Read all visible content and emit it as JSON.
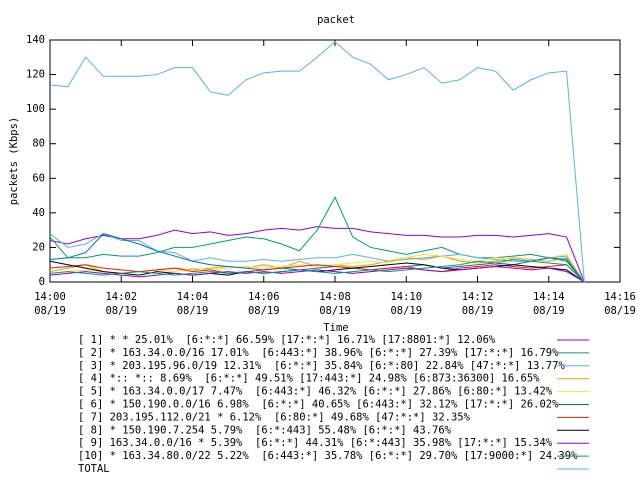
{
  "chart_data": {
    "type": "line",
    "title": "packet",
    "x_label": "Time",
    "y_label": "packets (Kbps)",
    "x": [
      0,
      0.5,
      1,
      1.5,
      2,
      2.5,
      3,
      3.5,
      4,
      4.5,
      5,
      5.5,
      6,
      6.5,
      7,
      7.5,
      8,
      8.5,
      9,
      9.5,
      10,
      10.5,
      11,
      11.5,
      12,
      12.5,
      13,
      13.5,
      14,
      14.5,
      15
    ],
    "xlim": [
      0,
      16
    ],
    "xticks": [
      {
        "value": 0,
        "label": "14:00 08/19"
      },
      {
        "value": 2,
        "label": "14:02 08/19"
      },
      {
        "value": 4,
        "label": "14:04 08/19"
      },
      {
        "value": 6,
        "label": "14:06 08/19"
      },
      {
        "value": 8,
        "label": "14:08 08/19"
      },
      {
        "value": 10,
        "label": "14:10 08/19"
      },
      {
        "value": 12,
        "label": "14:12 08/19"
      },
      {
        "value": 14,
        "label": "14:14 08/19"
      },
      {
        "value": 16,
        "label": "14:16 08/19"
      }
    ],
    "ylim": [
      0,
      140
    ],
    "yticks": [
      0,
      20,
      40,
      60,
      80,
      100,
      120,
      140
    ],
    "series": [
      {
        "name": "[ 1] * * 25.01%  [6:*:*] 66.59% [17:*:*] 16.71% [17:8801:*] 12.06%",
        "color": "#9400d3",
        "values": [
          24,
          22,
          25,
          27,
          25,
          25,
          27,
          30,
          28,
          29,
          27,
          28,
          30,
          31,
          30,
          32,
          31,
          31,
          29,
          28,
          27,
          27,
          26,
          26,
          27,
          27,
          26,
          27,
          28,
          26,
          0
        ]
      },
      {
        "name": "[ 2] * 163.34.0.0/16 17.01%  [6:443:*] 38.96% [6:*:*] 27.39% [17:*:*] 16.79%",
        "color": "#009e73",
        "values": [
          26,
          14,
          14,
          16,
          15,
          15,
          17,
          20,
          20,
          22,
          24,
          26,
          25,
          22,
          18,
          30,
          49,
          26,
          20,
          18,
          16,
          18,
          20,
          16,
          14,
          14,
          15,
          16,
          14,
          12,
          0
        ]
      },
      {
        "name": "[ 3] * 203.195.96.0/19 12.31%  [6:*:*] 35.84% [6:*:80] 22.84% [47:*:*] 13.77%",
        "color": "#56b4e9",
        "values": [
          28,
          20,
          22,
          28,
          24,
          24,
          18,
          17,
          12,
          14,
          12,
          12,
          13,
          12,
          13,
          14,
          14,
          16,
          14,
          12,
          13,
          14,
          15,
          16,
          14,
          13,
          12,
          12,
          14,
          15,
          0
        ]
      },
      {
        "name": "[ 4] *:: *:: 8.69%  [6:*:*] 49.51% [17:443:*] 24.98% [6:873:36300] 16.65%",
        "color": "#e69f00",
        "values": [
          6,
          8,
          10,
          6,
          5,
          6,
          7,
          8,
          7,
          8,
          9,
          8,
          10,
          8,
          12,
          9,
          10,
          9,
          10,
          12,
          14,
          13,
          15,
          12,
          11,
          12,
          14,
          13,
          12,
          14,
          0
        ]
      },
      {
        "name": "[ 5] * 163.34.0.0/17 7.47%  [6:443:*] 46.32% [6:*:*] 27.86% [6:80:*] 13.42%",
        "color": "#f0e442",
        "values": [
          5,
          6,
          7,
          6,
          5,
          6,
          7,
          6,
          8,
          7,
          8,
          9,
          8,
          9,
          10,
          9,
          10,
          11,
          12,
          11,
          14,
          16,
          15,
          13,
          12,
          14,
          13,
          12,
          14,
          16,
          0
        ]
      },
      {
        "name": "[ 6] * 150.190.0.0/16 6.98%  [6:*:*] 40.65% [6:443:*] 32.12% [17:*:*] 26.02%",
        "color": "#0072b2",
        "values": [
          13,
          14,
          17,
          28,
          25,
          22,
          18,
          15,
          12,
          10,
          9,
          8,
          7,
          8,
          7,
          8,
          9,
          8,
          7,
          8,
          9,
          10,
          8,
          9,
          10,
          11,
          10,
          12,
          14,
          13,
          0
        ]
      },
      {
        "name": "[ 7] 203.195.112.0/21 * 6.12%  [6:80:*] 49.68% [47:*:*] 32.35%",
        "color": "#e51e10",
        "values": [
          8,
          9,
          10,
          8,
          7,
          6,
          7,
          8,
          6,
          7,
          5,
          6,
          7,
          8,
          9,
          10,
          9,
          8,
          7,
          8,
          9,
          7,
          6,
          8,
          9,
          10,
          9,
          8,
          9,
          10,
          0
        ]
      },
      {
        "name": "[ 8] * 150.190.7.254 5.79%  [6:*:443] 55.48% [6:*:*] 43.76%",
        "color": "#000000",
        "values": [
          12,
          10,
          8,
          6,
          5,
          4,
          6,
          5,
          4,
          5,
          4,
          6,
          5,
          6,
          7,
          6,
          7,
          8,
          9,
          10,
          11,
          10,
          8,
          7,
          8,
          9,
          10,
          9,
          8,
          7,
          0
        ]
      },
      {
        "name": "[ 9] 163.34.0.0/16 * 5.39%  [6:*:*] 44.31% [6:*:443] 35.98% [17:*:*] 15.34%",
        "color": "#9400d3",
        "values": [
          4,
          5,
          6,
          5,
          4,
          3,
          4,
          5,
          4,
          5,
          6,
          5,
          6,
          5,
          6,
          7,
          6,
          5,
          6,
          7,
          8,
          7,
          6,
          7,
          8,
          9,
          8,
          7,
          8,
          6,
          0
        ]
      },
      {
        "name": "[10] * 163.34.80.0/22 5.22%  [6:443:*] 35.78% [6:*:*] 29.70% [17:9000:*] 24.39%",
        "color": "#009e73",
        "values": [
          5,
          6,
          5,
          4,
          5,
          6,
          5,
          4,
          5,
          6,
          5,
          6,
          5,
          6,
          7,
          6,
          5,
          6,
          7,
          6,
          7,
          8,
          9,
          10,
          12,
          11,
          13,
          12,
          11,
          10,
          0
        ]
      },
      {
        "name": "TOTAL",
        "color": "#56b4e9",
        "values": [
          114,
          113,
          130,
          119,
          119,
          119,
          120,
          124,
          124,
          110,
          108,
          117,
          121,
          122,
          122,
          130,
          139,
          130,
          126,
          117,
          120,
          124,
          115,
          117,
          124,
          122,
          111,
          117,
          121,
          122,
          0
        ]
      }
    ]
  }
}
